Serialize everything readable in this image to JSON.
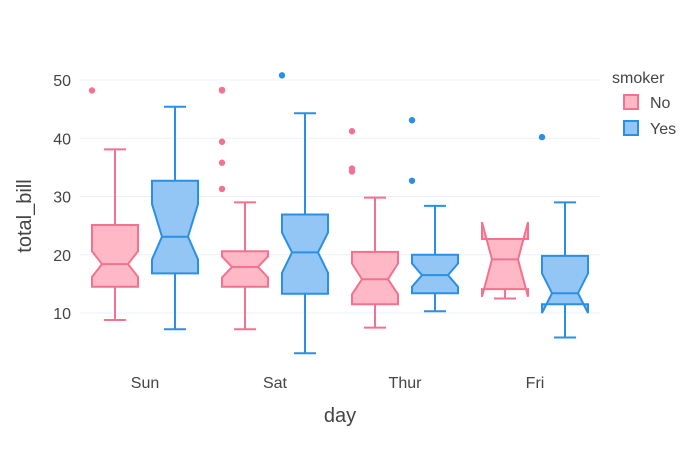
{
  "chart_data": {
    "type": "box",
    "notched": true,
    "title": "",
    "xlabel": "day",
    "ylabel": "total_bill",
    "ylim": [
      0,
      55
    ],
    "yticks": [
      10,
      20,
      30,
      40,
      50
    ],
    "grid": true,
    "categories": [
      "Sun",
      "Sat",
      "Thur",
      "Fri"
    ],
    "legend": {
      "title": "smoker",
      "placement": "right"
    },
    "series": [
      {
        "name": "No",
        "line_color": "#f2728f",
        "fill_color": "#ffb8c6",
        "boxes": [
          {
            "category": "Sun",
            "lower_whisker": 8.8,
            "q1": 14.5,
            "notch_low": 16.2,
            "median": 18.4,
            "notch_high": 20.6,
            "q3": 25.1,
            "upper_whisker": 38.1,
            "outliers": [
              48.2
            ]
          },
          {
            "category": "Sat",
            "lower_whisker": 7.2,
            "q1": 14.5,
            "notch_low": 16.1,
            "median": 17.9,
            "notch_high": 19.7,
            "q3": 20.6,
            "upper_whisker": 29.0,
            "outliers": [
              31.3,
              35.8,
              39.4,
              48.2,
              48.3
            ]
          },
          {
            "category": "Thur",
            "lower_whisker": 7.5,
            "q1": 11.5,
            "notch_low": 13.2,
            "median": 15.8,
            "notch_high": 18.5,
            "q3": 20.5,
            "upper_whisker": 29.8,
            "outliers": [
              34.3,
              34.8,
              41.2
            ]
          },
          {
            "category": "Fri",
            "lower_whisker": 12.5,
            "q1": 14.1,
            "notch_low": 12.8,
            "median": 19.2,
            "notch_high": 25.6,
            "q3": 22.7,
            "upper_whisker": 22.7,
            "outliers": []
          }
        ]
      },
      {
        "name": "Yes",
        "line_color": "#2a8fe6",
        "fill_color": "#94c6f5",
        "boxes": [
          {
            "category": "Sun",
            "lower_whisker": 7.2,
            "q1": 16.8,
            "notch_low": 19.2,
            "median": 23.1,
            "notch_high": 28.7,
            "q3": 32.7,
            "upper_whisker": 45.4,
            "outliers": []
          },
          {
            "category": "Sat",
            "lower_whisker": 3.1,
            "q1": 13.3,
            "notch_low": 16.9,
            "median": 20.4,
            "notch_high": 23.8,
            "q3": 26.9,
            "upper_whisker": 44.3,
            "outliers": [
              50.8
            ]
          },
          {
            "category": "Thur",
            "lower_whisker": 10.3,
            "q1": 13.4,
            "notch_low": 14.5,
            "median": 16.5,
            "notch_high": 18.5,
            "q3": 20.0,
            "upper_whisker": 28.4,
            "outliers": [
              32.7,
              43.1
            ]
          },
          {
            "category": "Fri",
            "lower_whisker": 5.8,
            "q1": 11.5,
            "notch_low": 10.0,
            "median": 13.4,
            "notch_high": 16.8,
            "q3": 19.8,
            "upper_whisker": 29.0,
            "outliers": [
              40.2
            ]
          }
        ]
      }
    ]
  }
}
